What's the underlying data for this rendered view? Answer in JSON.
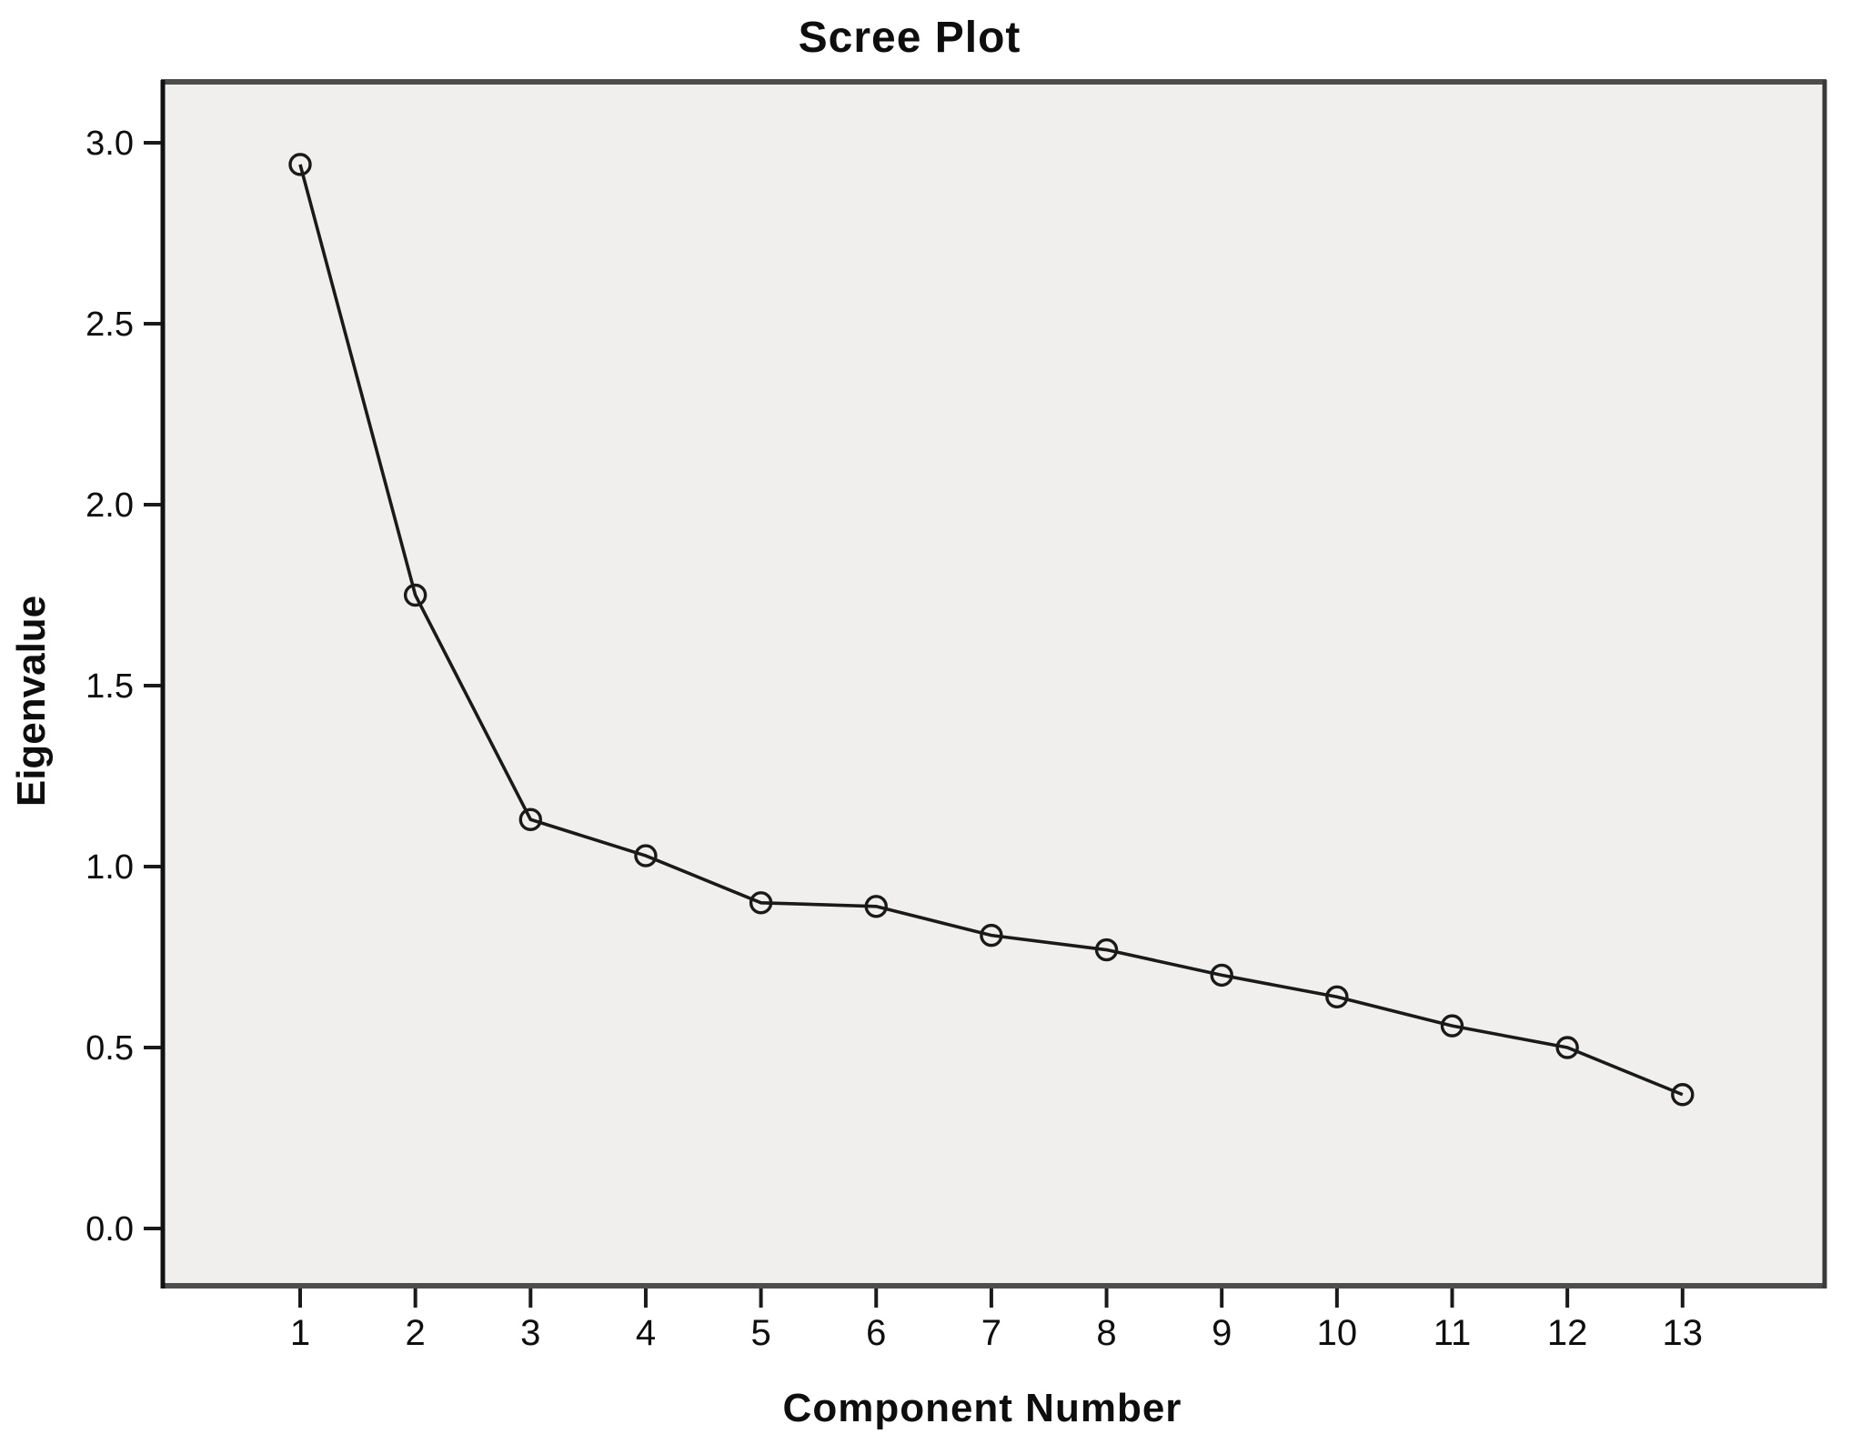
{
  "chart_data": {
    "type": "line",
    "title": "Scree Plot",
    "xlabel": "Component Number",
    "ylabel": "Eigenvalue",
    "series_name": "Eigenvalue",
    "x": [
      1,
      2,
      3,
      4,
      5,
      6,
      7,
      8,
      9,
      10,
      11,
      12,
      13
    ],
    "values": [
      2.94,
      1.75,
      1.13,
      1.03,
      0.9,
      0.89,
      0.81,
      0.77,
      0.7,
      0.64,
      0.56,
      0.5,
      0.37
    ],
    "x_tick_labels": [
      "1",
      "2",
      "3",
      "4",
      "5",
      "6",
      "7",
      "8",
      "9",
      "10",
      "11",
      "12",
      "13"
    ],
    "y_ticks": [
      0.0,
      0.5,
      1.0,
      1.5,
      2.0,
      2.5,
      3.0
    ],
    "y_tick_labels": [
      "0.0",
      "0.5",
      "1.0",
      "1.5",
      "2.0",
      "2.5",
      "3.0"
    ],
    "ylim": [
      -0.17,
      3.17
    ],
    "xlim": [
      -0.2,
      14.25
    ],
    "grid": false,
    "legend": "none",
    "marker": "open-circle",
    "colors": {
      "line": "#1a1a1a",
      "marker_stroke": "#1a1a1a",
      "plot_background": "#f0efee",
      "page_background": "#ffffff",
      "frame_top_bottom": "#4d4d4d",
      "frame_left": "#111111",
      "frame_right": "#3a3a3a",
      "tick": "#1a1a1a",
      "text": "#0e0e0e"
    }
  }
}
